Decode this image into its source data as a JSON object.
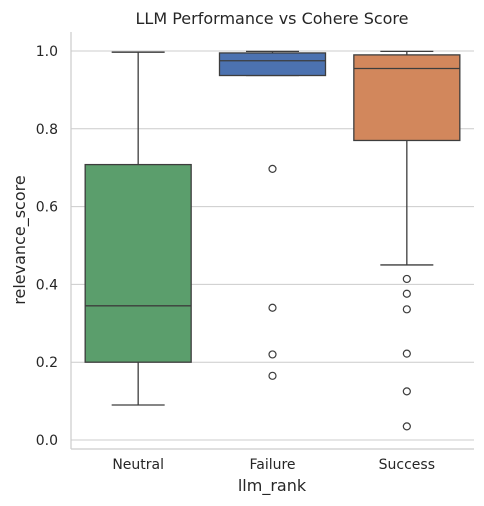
{
  "chart_data": {
    "type": "box",
    "title": "LLM Performance vs Cohere Score",
    "xlabel": "llm_rank",
    "ylabel": "relevance_score",
    "ylim": [
      -0.01,
      1.05
    ],
    "yticks": [
      0.0,
      0.2,
      0.4,
      0.6,
      0.8,
      1.0
    ],
    "ytick_labels": [
      "0.0",
      "0.2",
      "0.4",
      "0.6",
      "0.8",
      "1.0"
    ],
    "grid": "horizontal",
    "categories": [
      "Neutral",
      "Failure",
      "Success"
    ],
    "boxes": [
      {
        "category": "Neutral",
        "color": "#5b9e6c",
        "whisker_low": 0.09,
        "q1": 0.2,
        "median": 0.345,
        "q3": 0.708,
        "whisker_high": 0.997,
        "outliers": []
      },
      {
        "category": "Failure",
        "color": "#4c72b0",
        "whisker_low": 0.937,
        "q1": 0.937,
        "median": 0.975,
        "q3": 0.995,
        "whisker_high": 0.999,
        "outliers": [
          0.697,
          0.34,
          0.22,
          0.165
        ]
      },
      {
        "category": "Success",
        "color": "#d2875c",
        "whisker_low": 0.45,
        "q1": 0.77,
        "median": 0.955,
        "q3": 0.99,
        "whisker_high": 0.999,
        "outliers": [
          0.414,
          0.376,
          0.336,
          0.222,
          0.125,
          0.035
        ]
      }
    ]
  }
}
